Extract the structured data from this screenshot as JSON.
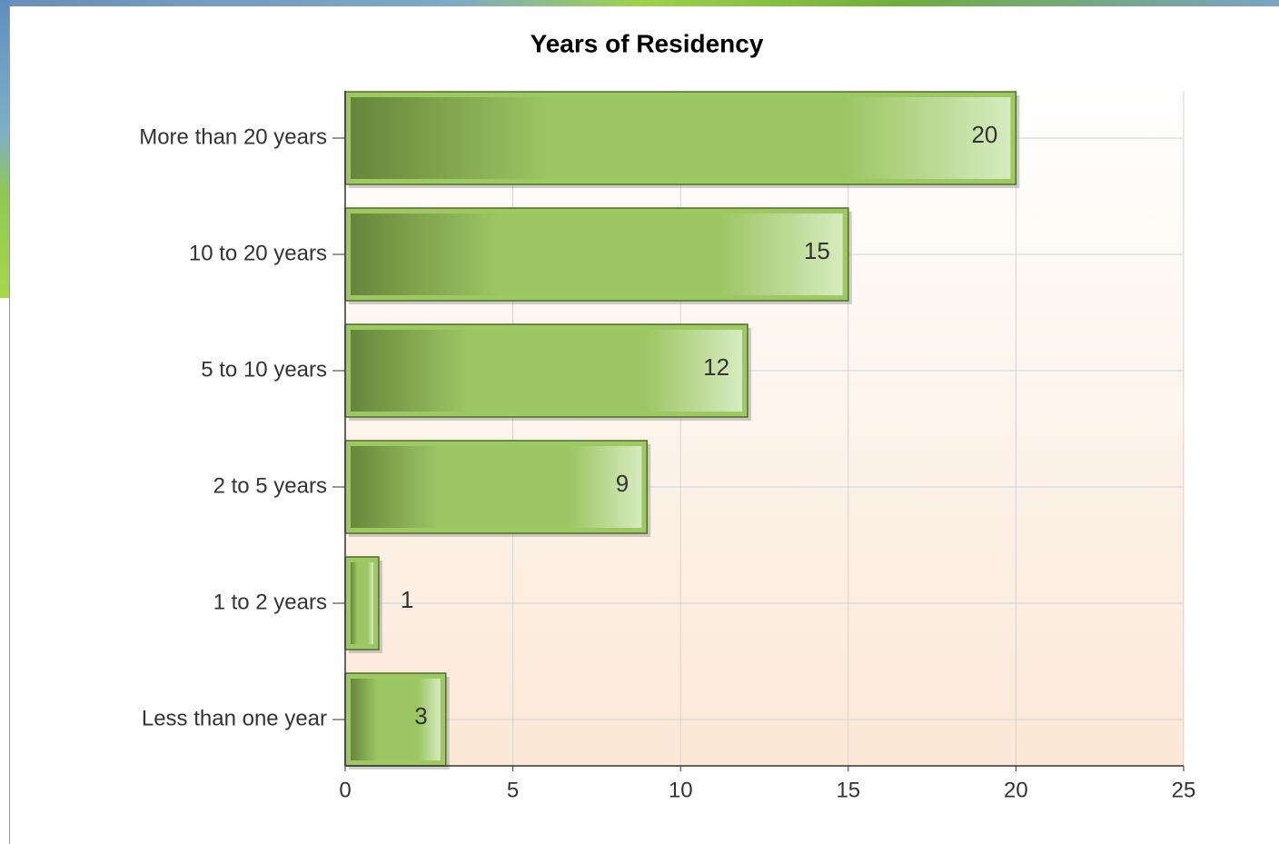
{
  "chart_data": {
    "type": "bar",
    "orientation": "horizontal",
    "title": "Years of Residency",
    "categories": [
      "More than 20 years",
      "10 to 20 years",
      "5 to 10 years",
      "2 to 5 years",
      "1 to 2 years",
      "Less than one year"
    ],
    "values": [
      20,
      15,
      12,
      9,
      1,
      3
    ],
    "color": "#9dc862",
    "xlim": [
      0,
      25
    ],
    "xticks": [
      0,
      5,
      10,
      15,
      20,
      25
    ],
    "grid": true
  }
}
